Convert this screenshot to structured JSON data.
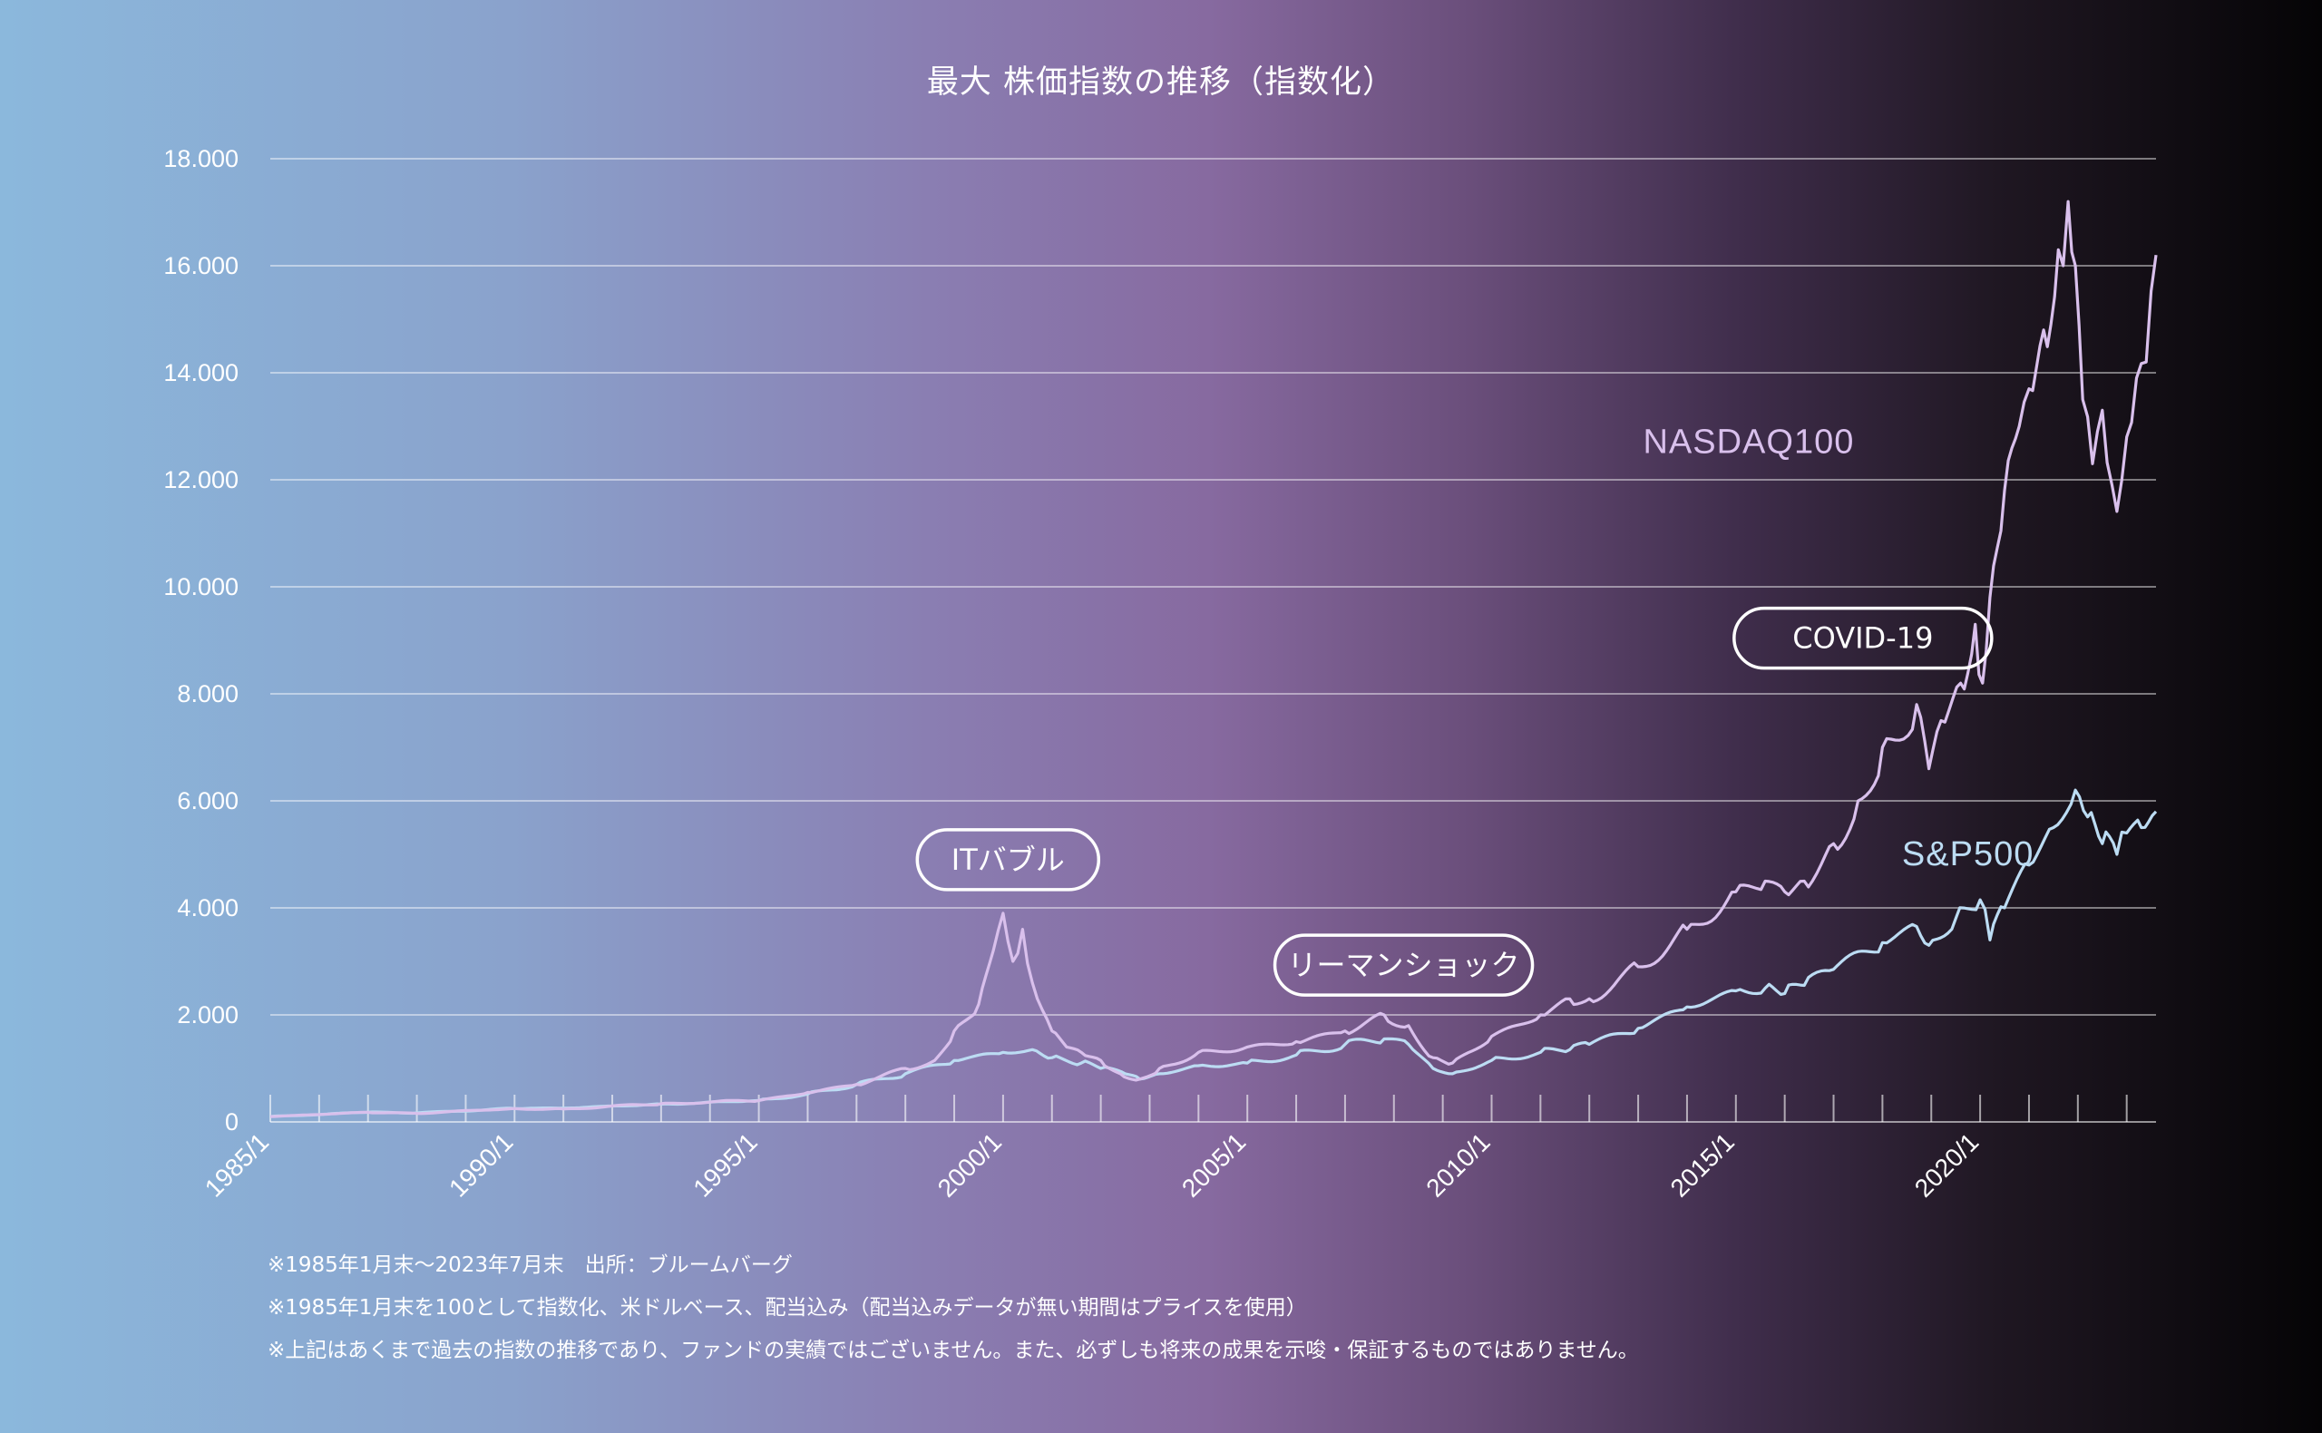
{
  "chart_data": {
    "type": "line",
    "title": "最大 株価指数の推移（指数化）",
    "ylim": [
      0,
      18000
    ],
    "yticks": [
      {
        "value": 0,
        "label": "0"
      },
      {
        "value": 2000,
        "label": "2.000"
      },
      {
        "value": 4000,
        "label": "4.000"
      },
      {
        "value": 6000,
        "label": "6.000"
      },
      {
        "value": 8000,
        "label": "8.000"
      },
      {
        "value": 10000,
        "label": "10.000"
      },
      {
        "value": 12000,
        "label": "12.000"
      },
      {
        "value": 14000,
        "label": "14.000"
      },
      {
        "value": 16000,
        "label": "16.000"
      },
      {
        "value": 18000,
        "label": "18.000"
      }
    ],
    "xlim": [
      1985.0,
      2023.6
    ],
    "xticks": [
      {
        "value": 1985,
        "label": "1985/1"
      },
      {
        "value": 1990,
        "label": "1990/1"
      },
      {
        "value": 1995,
        "label": "1995/1"
      },
      {
        "value": 2000,
        "label": "2000/1"
      },
      {
        "value": 2005,
        "label": "2005/1"
      },
      {
        "value": 2010,
        "label": "2010/1"
      },
      {
        "value": 2015,
        "label": "2015/1"
      },
      {
        "value": 2020,
        "label": "2020/1"
      }
    ],
    "grid": true,
    "series": [
      {
        "name": "NASDAQ100",
        "color": "#d9c0ec",
        "x": [
          1985.0,
          1987.0,
          1988.0,
          1990.0,
          1991.0,
          1993.0,
          1995.0,
          1996.0,
          1997.0,
          1998.0,
          1998.6,
          1999.0,
          1999.5,
          1999.8,
          2000.0,
          2000.2,
          2000.4,
          2000.6,
          2000.8,
          2001.0,
          2001.3,
          2001.6,
          2002.0,
          2002.4,
          2002.8,
          2003.2,
          2004.0,
          2005.0,
          2006.0,
          2007.0,
          2007.8,
          2008.3,
          2008.8,
          2009.2,
          2010.0,
          2011.0,
          2011.6,
          2012.0,
          2013.0,
          2014.0,
          2015.0,
          2015.6,
          2016.0,
          2016.4,
          2017.0,
          2017.5,
          2018.0,
          2018.7,
          2018.95,
          2019.2,
          2019.6,
          2019.9,
          2020.05,
          2020.2,
          2020.5,
          2020.8,
          2021.0,
          2021.3,
          2021.6,
          2021.8,
          2021.95,
          2022.1,
          2022.3,
          2022.5,
          2022.7,
          2022.9,
          2023.0,
          2023.2,
          2023.4,
          2023.6
        ],
        "values": [
          100,
          180,
          160,
          250,
          240,
          340,
          400,
          550,
          700,
          1000,
          1150,
          1700,
          2200,
          3200,
          3900,
          3000,
          3600,
          2600,
          2100,
          1700,
          1400,
          1300,
          1150,
          900,
          800,
          1000,
          1300,
          1400,
          1500,
          1700,
          2000,
          1800,
          1200,
          1100,
          1600,
          2000,
          2300,
          2300,
          2900,
          3600,
          4300,
          4500,
          4300,
          4500,
          5200,
          6000,
          7000,
          7800,
          6600,
          7500,
          8200,
          9300,
          8200,
          9800,
          11800,
          13000,
          13700,
          14800,
          16300,
          17200,
          16000,
          13500,
          12300,
          13300,
          11900,
          12000,
          12800,
          13900,
          14200,
          16200
        ]
      },
      {
        "name": "S&P500",
        "color": "#bcdcf3",
        "x": [
          1985.0,
          1987.0,
          1988.0,
          1990.0,
          1991.0,
          1993.0,
          1995.0,
          1996.0,
          1997.0,
          1998.0,
          1999.0,
          2000.0,
          2000.6,
          2001.0,
          2001.6,
          2002.0,
          2002.5,
          2002.8,
          2003.2,
          2004.0,
          2005.0,
          2006.0,
          2007.0,
          2007.8,
          2008.3,
          2008.8,
          2009.2,
          2010.0,
          2011.0,
          2011.6,
          2012.0,
          2013.0,
          2014.0,
          2015.0,
          2015.6,
          2016.0,
          2016.4,
          2017.0,
          2018.0,
          2018.7,
          2018.95,
          2019.5,
          2020.0,
          2020.2,
          2020.5,
          2021.0,
          2021.5,
          2021.95,
          2022.2,
          2022.5,
          2022.8,
          2023.0,
          2023.3,
          2023.6
        ],
        "values": [
          100,
          180,
          170,
          250,
          260,
          330,
          400,
          520,
          700,
          900,
          1150,
          1300,
          1350,
          1200,
          1100,
          1000,
          900,
          800,
          900,
          1050,
          1100,
          1250,
          1450,
          1550,
          1450,
          1000,
          900,
          1150,
          1300,
          1350,
          1450,
          1750,
          2150,
          2450,
          2500,
          2400,
          2550,
          2850,
          3350,
          3650,
          3300,
          3800,
          4150,
          3400,
          4000,
          4800,
          5500,
          6200,
          5700,
          5200,
          5000,
          5400,
          5500,
          5800
        ]
      }
    ],
    "series_labels": [
      {
        "text": "NASDAQ100",
        "color": "#d9c0ec"
      },
      {
        "text": "S&P500",
        "color": "#bcdcf3"
      }
    ],
    "annotations": [
      {
        "text": "ITバブル",
        "x": 2000.1,
        "y": 4900
      },
      {
        "text": "リーマンショック",
        "x": 2008.2,
        "y": 2930
      },
      {
        "text": "COVID-19",
        "x": 2017.6,
        "y": 9040
      }
    ]
  },
  "notes": [
    "※1985年1月末〜2023年7月末　出所：ブルームバーグ",
    "※1985年1月末を100として指数化、米ドルベース、配当込み（配当込みデータが無い期間はプライスを使用）",
    "※上記はあくまで過去の指数の推移であり、ファンドの実績ではございません。また、必ずしも将来の成果を示唆・保証するものではありません。"
  ]
}
